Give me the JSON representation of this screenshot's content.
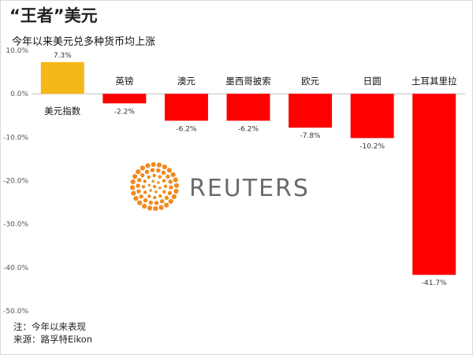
{
  "header": {
    "title": "“王者”美元",
    "subtitle": "今年以来美元兑多种货币均上涨"
  },
  "footer": {
    "note": "注：今年以来表现",
    "source": "来源：路孚特Eikon"
  },
  "logo": {
    "text": "REUTERS",
    "icon": "reuters-dot-logo",
    "color": "#f08a1f"
  },
  "chart_data": {
    "type": "bar",
    "categories": [
      "美元指数",
      "英镑",
      "澳元",
      "墨西哥披索",
      "欧元",
      "日圆",
      "土耳其里拉"
    ],
    "values": [
      7.3,
      -2.2,
      -6.2,
      -6.2,
      -7.8,
      -10.2,
      -41.7
    ],
    "value_labels": [
      "7.3%",
      "-2.2%",
      "-6.2%",
      "-6.2%",
      "-7.8%",
      "-10.2%",
      "-41.7%"
    ],
    "colors": [
      "#f5b81a",
      "#ff0000",
      "#ff0000",
      "#ff0000",
      "#ff0000",
      "#ff0000",
      "#ff0000"
    ],
    "ylim": [
      -50,
      10
    ],
    "yticks": [
      10,
      0,
      -10,
      -20,
      -30,
      -40,
      -50
    ],
    "ytick_labels": [
      "10.0%",
      "0.0%",
      "-10.0%",
      "-20.0%",
      "-30.0%",
      "-40.0%",
      "-50.0%"
    ],
    "grid": false,
    "title": "",
    "xlabel": "",
    "ylabel": ""
  }
}
